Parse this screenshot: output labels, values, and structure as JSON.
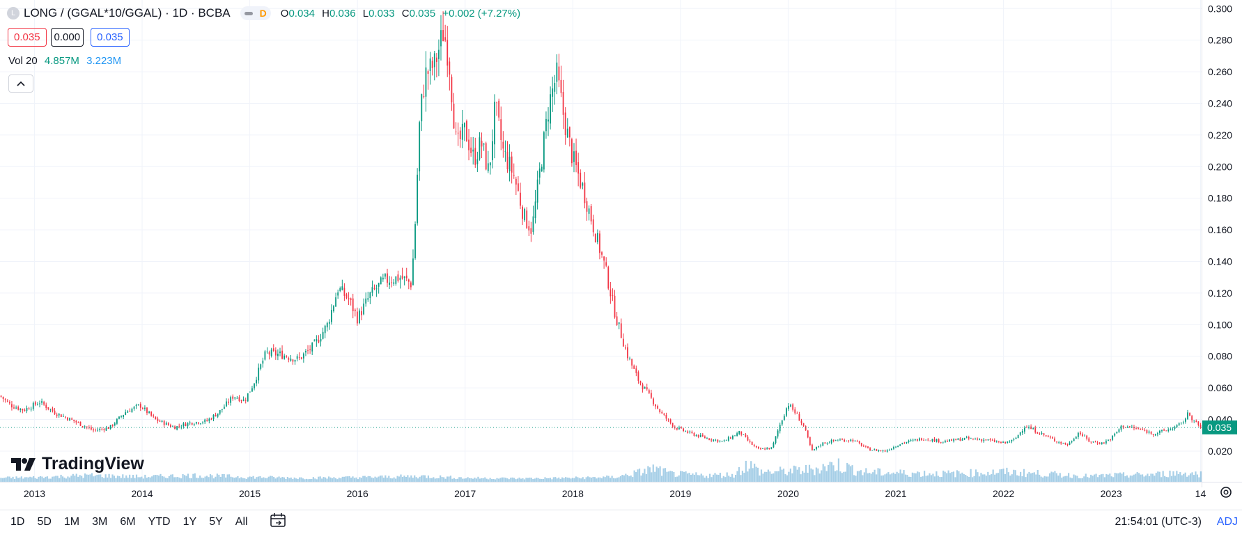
{
  "header": {
    "symbol_icon": "L",
    "symbol_title": "LONG / (GGAL*10/GGAL) · 1D · BCBA",
    "market_status": "D",
    "ohlc": {
      "o_label": "O",
      "o": "0.034",
      "h_label": "H",
      "h": "0.036",
      "l_label": "L",
      "l": "0.033",
      "c_label": "C",
      "c": "0.035",
      "change": "+0.002 (+7.27%)"
    },
    "bid": "0.035",
    "spread": "0.000",
    "ask": "0.035",
    "volume_label": "Vol 20",
    "volume_value": "4.857M",
    "volume_ma": "3.223M",
    "collapse_icon": "chevron-up-icon"
  },
  "logo_text": "TradingView",
  "range_buttons": [
    "1D",
    "5D",
    "1M",
    "3M",
    "6M",
    "YTD",
    "1Y",
    "5Y",
    "All"
  ],
  "footer": {
    "time": "21:54:01 (UTC-3)",
    "adj": "ADJ"
  },
  "colors": {
    "up": "#089981",
    "down": "#f23645",
    "volume": "#5fa8d3",
    "last_price_bg": "#089981",
    "grid": "#f0f3fa"
  },
  "chart_data": {
    "type": "candlestick",
    "title": "LONG / (GGAL*10/GGAL) · 1D · BCBA",
    "last_price": "0.035",
    "last_price_value": 0.035,
    "ylim": [
      0.005,
      0.301
    ],
    "y_ticks": [
      "0.020",
      "0.040",
      "0.060",
      "0.080",
      "0.100",
      "0.120",
      "0.140",
      "0.160",
      "0.180",
      "0.200",
      "0.220",
      "0.240",
      "0.260",
      "0.280",
      "0.300"
    ],
    "x_range": [
      2012.68,
      2023.84
    ],
    "x_ticks": [
      {
        "label": "2013",
        "t": 2013.0
      },
      {
        "label": "2014",
        "t": 2014.0
      },
      {
        "label": "2015",
        "t": 2015.0
      },
      {
        "label": "2016",
        "t": 2016.0
      },
      {
        "label": "2017",
        "t": 2017.0
      },
      {
        "label": "2018",
        "t": 2018.0
      },
      {
        "label": "2019",
        "t": 2019.0
      },
      {
        "label": "2020",
        "t": 2020.0
      },
      {
        "label": "2021",
        "t": 2021.0
      },
      {
        "label": "2022",
        "t": 2022.0
      },
      {
        "label": "2023",
        "t": 2023.0
      },
      {
        "label": "14",
        "t": 2023.83
      }
    ],
    "price_path": [
      [
        2012.68,
        0.055
      ],
      [
        2012.78,
        0.049
      ],
      [
        2012.9,
        0.046
      ],
      [
        2013.05,
        0.051
      ],
      [
        2013.2,
        0.044
      ],
      [
        2013.4,
        0.038
      ],
      [
        2013.55,
        0.033
      ],
      [
        2013.7,
        0.035
      ],
      [
        2013.85,
        0.045
      ],
      [
        2013.98,
        0.049
      ],
      [
        2014.12,
        0.04
      ],
      [
        2014.3,
        0.035
      ],
      [
        2014.45,
        0.038
      ],
      [
        2014.6,
        0.039
      ],
      [
        2014.72,
        0.045
      ],
      [
        2014.85,
        0.055
      ],
      [
        2014.95,
        0.052
      ],
      [
        2015.03,
        0.062
      ],
      [
        2015.15,
        0.082
      ],
      [
        2015.3,
        0.081
      ],
      [
        2015.45,
        0.078
      ],
      [
        2015.6,
        0.087
      ],
      [
        2015.72,
        0.1
      ],
      [
        2015.82,
        0.123
      ],
      [
        2015.92,
        0.116
      ],
      [
        2016.0,
        0.104
      ],
      [
        2016.12,
        0.119
      ],
      [
        2016.25,
        0.128
      ],
      [
        2016.4,
        0.13
      ],
      [
        2016.5,
        0.126
      ],
      [
        2016.53,
        0.155
      ],
      [
        2016.58,
        0.232
      ],
      [
        2016.63,
        0.258
      ],
      [
        2016.72,
        0.265
      ],
      [
        2016.8,
        0.286
      ],
      [
        2016.85,
        0.268
      ],
      [
        2016.92,
        0.212
      ],
      [
        2017.0,
        0.223
      ],
      [
        2017.08,
        0.205
      ],
      [
        2017.15,
        0.215
      ],
      [
        2017.22,
        0.196
      ],
      [
        2017.28,
        0.238
      ],
      [
        2017.35,
        0.21
      ],
      [
        2017.45,
        0.195
      ],
      [
        2017.55,
        0.168
      ],
      [
        2017.62,
        0.16
      ],
      [
        2017.7,
        0.2
      ],
      [
        2017.78,
        0.24
      ],
      [
        2017.85,
        0.258
      ],
      [
        2017.92,
        0.23
      ],
      [
        2018.0,
        0.205
      ],
      [
        2018.1,
        0.185
      ],
      [
        2018.2,
        0.16
      ],
      [
        2018.3,
        0.136
      ],
      [
        2018.4,
        0.105
      ],
      [
        2018.5,
        0.082
      ],
      [
        2018.6,
        0.066
      ],
      [
        2018.7,
        0.056
      ],
      [
        2018.82,
        0.044
      ],
      [
        2018.95,
        0.035
      ],
      [
        2019.1,
        0.031
      ],
      [
        2019.25,
        0.028
      ],
      [
        2019.4,
        0.026
      ],
      [
        2019.55,
        0.032
      ],
      [
        2019.65,
        0.025
      ],
      [
        2019.72,
        0.021
      ],
      [
        2019.85,
        0.022
      ],
      [
        2019.92,
        0.036
      ],
      [
        2020.0,
        0.05
      ],
      [
        2020.08,
        0.043
      ],
      [
        2020.15,
        0.035
      ],
      [
        2020.22,
        0.02
      ],
      [
        2020.32,
        0.025
      ],
      [
        2020.45,
        0.027
      ],
      [
        2020.6,
        0.027
      ],
      [
        2020.75,
        0.021
      ],
      [
        2020.9,
        0.02
      ],
      [
        2021.05,
        0.025
      ],
      [
        2021.25,
        0.028
      ],
      [
        2021.45,
        0.026
      ],
      [
        2021.65,
        0.028
      ],
      [
        2021.85,
        0.027
      ],
      [
        2022.0,
        0.025
      ],
      [
        2022.1,
        0.027
      ],
      [
        2022.2,
        0.036
      ],
      [
        2022.35,
        0.031
      ],
      [
        2022.5,
        0.026
      ],
      [
        2022.6,
        0.024
      ],
      [
        2022.7,
        0.032
      ],
      [
        2022.8,
        0.026
      ],
      [
        2022.92,
        0.025
      ],
      [
        2023.0,
        0.028
      ],
      [
        2023.1,
        0.036
      ],
      [
        2023.25,
        0.034
      ],
      [
        2023.4,
        0.031
      ],
      [
        2023.55,
        0.034
      ],
      [
        2023.65,
        0.037
      ],
      [
        2023.72,
        0.044
      ],
      [
        2023.78,
        0.038
      ],
      [
        2023.83,
        0.035
      ]
    ],
    "volume_profile": [
      [
        2012.68,
        0.15
      ],
      [
        2013.0,
        0.18
      ],
      [
        2013.5,
        0.3
      ],
      [
        2014.0,
        0.22
      ],
      [
        2014.5,
        0.3
      ],
      [
        2015.0,
        0.2
      ],
      [
        2015.5,
        0.15
      ],
      [
        2016.0,
        0.18
      ],
      [
        2016.6,
        0.25
      ],
      [
        2017.0,
        0.15
      ],
      [
        2017.5,
        0.12
      ],
      [
        2018.0,
        0.15
      ],
      [
        2018.4,
        0.2
      ],
      [
        2018.6,
        0.45
      ],
      [
        2018.75,
        0.7
      ],
      [
        2018.9,
        0.4
      ],
      [
        2019.2,
        0.3
      ],
      [
        2019.5,
        0.35
      ],
      [
        2019.62,
        1.0
      ],
      [
        2019.75,
        0.5
      ],
      [
        2020.0,
        0.55
      ],
      [
        2020.2,
        0.65
      ],
      [
        2020.45,
        0.95
      ],
      [
        2020.7,
        0.5
      ],
      [
        2021.0,
        0.45
      ],
      [
        2021.5,
        0.4
      ],
      [
        2022.0,
        0.5
      ],
      [
        2022.2,
        0.45
      ],
      [
        2022.5,
        0.35
      ],
      [
        2022.8,
        0.25
      ],
      [
        2023.0,
        0.3
      ],
      [
        2023.4,
        0.35
      ],
      [
        2023.6,
        0.45
      ],
      [
        2023.84,
        0.4
      ]
    ]
  }
}
